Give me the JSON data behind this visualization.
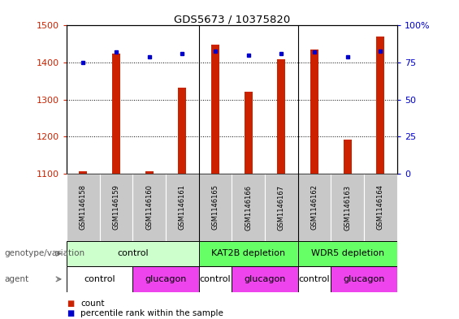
{
  "title": "GDS5673 / 10375820",
  "samples": [
    "GSM1146158",
    "GSM1146159",
    "GSM1146160",
    "GSM1146161",
    "GSM1146165",
    "GSM1146166",
    "GSM1146167",
    "GSM1146162",
    "GSM1146163",
    "GSM1146164"
  ],
  "counts": [
    1108,
    1424,
    1108,
    1332,
    1448,
    1322,
    1409,
    1435,
    1192,
    1470
  ],
  "percentiles": [
    75,
    82,
    79,
    81,
    83,
    80,
    81,
    82,
    79,
    83
  ],
  "ylim_left": [
    1100,
    1500
  ],
  "ylim_right": [
    0,
    100
  ],
  "yticks_left": [
    1100,
    1200,
    1300,
    1400,
    1500
  ],
  "yticks_right": [
    0,
    25,
    50,
    75,
    100
  ],
  "bar_color": "#cc2200",
  "dot_color": "#0000cc",
  "sample_bg": "#c8c8c8",
  "geno_control_color": "#ccffcc",
  "geno_other_color": "#66ff66",
  "agent_control_color": "#ffffff",
  "agent_glucagon_color": "#ee44ee",
  "genotype_groups": [
    {
      "label": "control",
      "start": 0,
      "end": 3,
      "color": "#ccffcc"
    },
    {
      "label": "KAT2B depletion",
      "start": 4,
      "end": 6,
      "color": "#66ff66"
    },
    {
      "label": "WDR5 depletion",
      "start": 7,
      "end": 9,
      "color": "#66ff66"
    }
  ],
  "agent_groups": [
    {
      "label": "control",
      "start": 0,
      "end": 1,
      "color": "#ffffff"
    },
    {
      "label": "glucagon",
      "start": 2,
      "end": 3,
      "color": "#ee44ee"
    },
    {
      "label": "control",
      "start": 4,
      "end": 4,
      "color": "#ffffff"
    },
    {
      "label": "glucagon",
      "start": 5,
      "end": 6,
      "color": "#ee44ee"
    },
    {
      "label": "control",
      "start": 7,
      "end": 7,
      "color": "#ffffff"
    },
    {
      "label": "glucagon",
      "start": 8,
      "end": 9,
      "color": "#ee44ee"
    }
  ],
  "row_label_genotype": "genotype/variation",
  "row_label_agent": "agent",
  "legend_count": "count",
  "legend_percentile": "percentile rank within the sample",
  "group_separators": [
    3.5,
    6.5
  ]
}
